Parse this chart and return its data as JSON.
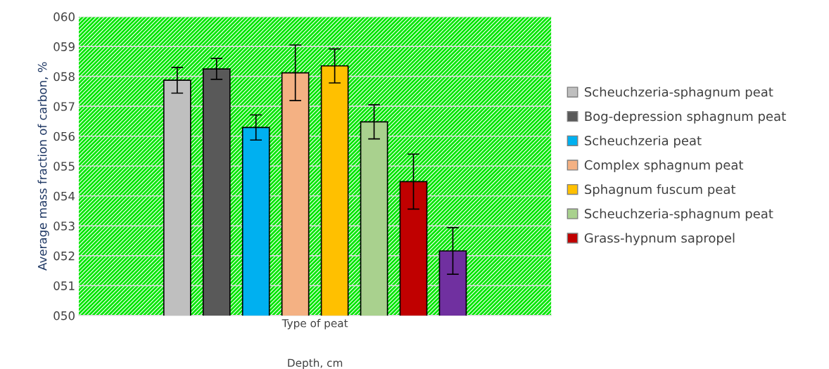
{
  "chart_data": {
    "type": "bar",
    "xlabel": "Depth, cm",
    "ylabel": "Average mass fraction of carbon, %",
    "categories": [
      "Type of peat"
    ],
    "series": [
      {
        "name": "Scheuchzeria-sphagnum peat",
        "color": "#bfbfbf",
        "values": [
          57.87
        ],
        "errors": [
          0.43
        ]
      },
      {
        "name": "Bog-depression sphagnum peat",
        "color": "#595959",
        "values": [
          58.25
        ],
        "errors": [
          0.35
        ]
      },
      {
        "name": "Scheuchzeria peat",
        "color": "#00b0f0",
        "values": [
          56.29
        ],
        "errors": [
          0.42
        ]
      },
      {
        "name": "Complex sphagnum peat",
        "color": "#f4b183",
        "values": [
          58.12
        ],
        "errors": [
          0.93
        ]
      },
      {
        "name": "Sphagnum fuscum peat",
        "color": "#ffc000",
        "values": [
          58.35
        ],
        "errors": [
          0.57
        ]
      },
      {
        "name": "Scheuchzeria-sphagnum peat",
        "color": "#a9d18e",
        "values": [
          56.48
        ],
        "errors": [
          0.57
        ]
      },
      {
        "name": "Grass-hypnum sapropel",
        "color": "#c00000",
        "values": [
          54.48
        ],
        "errors": [
          0.92
        ]
      },
      {
        "color": "#7030a0",
        "values": [
          52.16
        ],
        "errors": [
          0.78
        ]
      }
    ],
    "ylim": [
      50,
      60
    ],
    "yticks": [
      {
        "value": 50,
        "label": "050"
      },
      {
        "value": 51,
        "label": "051"
      },
      {
        "value": 52,
        "label": "052"
      },
      {
        "value": 53,
        "label": "053"
      },
      {
        "value": 54,
        "label": "054"
      },
      {
        "value": 55,
        "label": "055"
      },
      {
        "value": 56,
        "label": "056"
      },
      {
        "value": 57,
        "label": "057"
      },
      {
        "value": 58,
        "label": "058"
      },
      {
        "value": 59,
        "label": "059"
      },
      {
        "value": 60,
        "label": "060"
      }
    ],
    "grid": "y",
    "legend": "right"
  }
}
